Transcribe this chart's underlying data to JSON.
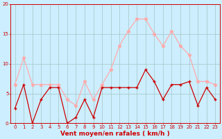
{
  "x": [
    0,
    1,
    2,
    3,
    4,
    5,
    6,
    7,
    8,
    9,
    10,
    11,
    12,
    13,
    14,
    15,
    16,
    17,
    18,
    19,
    20,
    21,
    22,
    23
  ],
  "wind_avg": [
    2.5,
    6.5,
    0,
    4,
    6,
    6,
    0,
    1,
    4,
    1,
    6,
    6,
    6,
    6,
    6,
    9,
    7,
    4,
    6.5,
    6.5,
    7,
    3,
    6,
    4
  ],
  "wind_gust": [
    6.5,
    11,
    6.5,
    6.5,
    6.5,
    6.5,
    4,
    3,
    7,
    4,
    6.5,
    9,
    13,
    15.5,
    17.5,
    17.5,
    15,
    13,
    15.5,
    13,
    11.5,
    7,
    7,
    6.5
  ],
  "avg_color": "#cc0000",
  "gust_color": "#ffaaaa",
  "bg_color": "#cceeff",
  "grid_color": "#aacccc",
  "xlabel": "Vent moyen/en rafales ( km/h )",
  "xlabel_color": "#cc0000",
  "axis_label_color": "#cc0000",
  "ylim": [
    0,
    20
  ],
  "xlim": [
    -0.5,
    23.5
  ],
  "yticks": [
    0,
    5,
    10,
    15,
    20
  ],
  "xticks": [
    0,
    1,
    2,
    3,
    4,
    5,
    6,
    7,
    8,
    9,
    10,
    11,
    12,
    13,
    14,
    15,
    16,
    17,
    18,
    19,
    20,
    21,
    22,
    23
  ]
}
